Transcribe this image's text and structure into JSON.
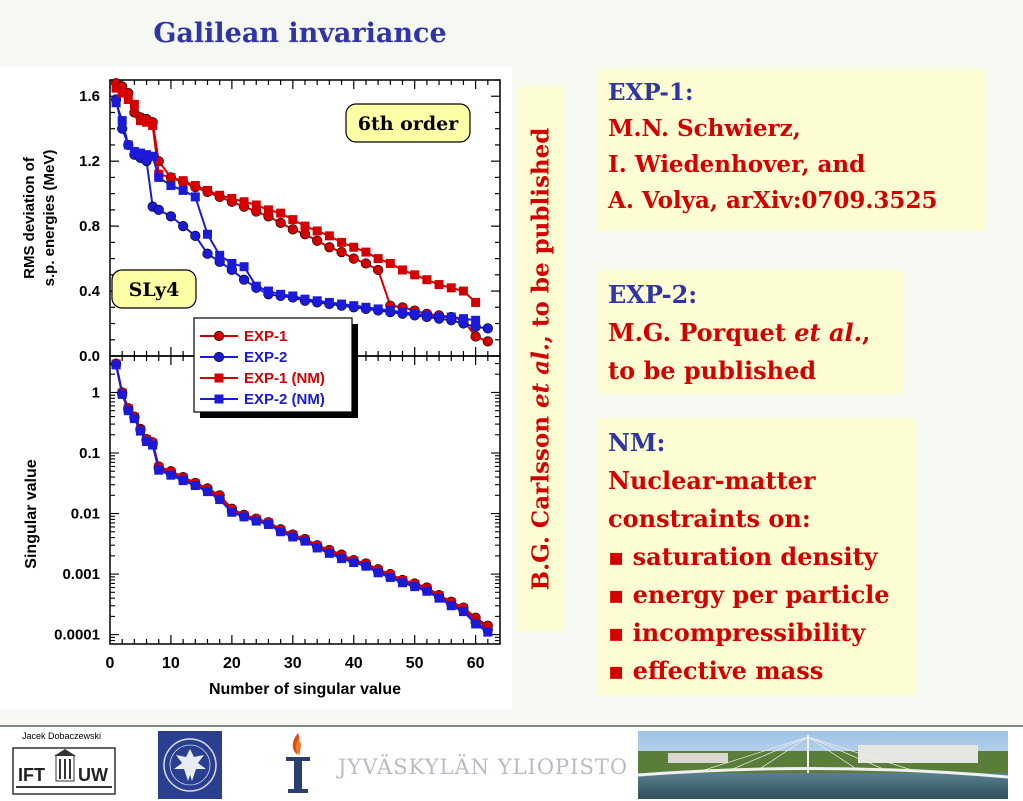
{
  "slide_title": "Galilean invariance",
  "vertical_note": {
    "part1": "B.G. Carlsson ",
    "part2": "et al.",
    "part3": ", to be published"
  },
  "exp1_box": {
    "heading": "EXP-1:",
    "lines": [
      "M.N. Schwierz,",
      "I. Wiedenhover, and",
      "A. Volya, arXiv:0709.3525"
    ]
  },
  "exp2_box": {
    "heading": "EXP-2:",
    "line1_pre": "M.G. Porquet ",
    "line1_em": "et al.",
    "line1_post": ",",
    "line2": "to be published"
  },
  "nm_box": {
    "heading": "NM:",
    "lines": [
      "Nuclear-matter",
      "constraints on:"
    ],
    "bullets": [
      "saturation density",
      "energy per particle",
      "incompressibility",
      "effective mass"
    ]
  },
  "footer": {
    "author": "Jacek Dobaczewski",
    "ift_logo_text": "IFT",
    "uw_logo_text": "UW",
    "university_name": "JYVÄSKYLÄN YLIOPISTO"
  },
  "chart_data": [
    {
      "type": "line",
      "panel": "top",
      "ylabel_lines": [
        "RMS deviation of",
        "s.p. energies (MeV)"
      ],
      "ylim": [
        0,
        1.7
      ],
      "xlim": [
        0,
        64
      ],
      "y_ticks": [
        "0.0",
        "0.4",
        "0.8",
        "1.2",
        "1.6"
      ],
      "y_tick_values": [
        0,
        0.4,
        0.8,
        1.2,
        1.6
      ],
      "annotations": [
        "6th order",
        "SLy4"
      ],
      "series": [
        {
          "name": "EXP-1",
          "color": "#d40000",
          "marker": "circle",
          "x": [
            1,
            2,
            3,
            4,
            5,
            6,
            7,
            8,
            10,
            12,
            14,
            16,
            18,
            20,
            22,
            24,
            26,
            28,
            30,
            32,
            34,
            36,
            38,
            40,
            42,
            44,
            46,
            48,
            50,
            52,
            54,
            56,
            58,
            60,
            62
          ],
          "y": [
            1.68,
            1.66,
            1.62,
            1.5,
            1.47,
            1.46,
            1.44,
            1.2,
            1.1,
            1.07,
            1.04,
            1.01,
            0.98,
            0.95,
            0.92,
            0.89,
            0.86,
            0.82,
            0.78,
            0.75,
            0.71,
            0.67,
            0.64,
            0.6,
            0.57,
            0.53,
            0.31,
            0.3,
            0.28,
            0.26,
            0.25,
            0.24,
            0.22,
            0.12,
            0.09
          ]
        },
        {
          "name": "EXP-2",
          "color": "#1a1ad8",
          "marker": "circle",
          "x": [
            1,
            2,
            3,
            4,
            5,
            6,
            7,
            8,
            10,
            12,
            14,
            16,
            18,
            20,
            22,
            24,
            26,
            28,
            30,
            32,
            34,
            36,
            38,
            40,
            42,
            44,
            46,
            48,
            50,
            52,
            54,
            56,
            58,
            60,
            62
          ],
          "y": [
            1.58,
            1.4,
            1.3,
            1.24,
            1.22,
            1.2,
            0.92,
            0.9,
            0.86,
            0.8,
            0.74,
            0.63,
            0.58,
            0.53,
            0.47,
            0.42,
            0.38,
            0.37,
            0.36,
            0.34,
            0.33,
            0.32,
            0.31,
            0.3,
            0.29,
            0.28,
            0.27,
            0.26,
            0.25,
            0.24,
            0.23,
            0.22,
            0.2,
            0.18,
            0.17
          ]
        },
        {
          "name": "EXP-1 (NM)",
          "color": "#d40000",
          "marker": "square",
          "x": [
            1,
            2,
            3,
            4,
            5,
            6,
            7,
            8,
            10,
            12,
            14,
            16,
            18,
            20,
            22,
            24,
            26,
            28,
            30,
            32,
            34,
            36,
            38,
            40,
            42,
            44,
            46,
            48,
            50,
            52,
            54,
            56,
            58,
            60
          ],
          "y": [
            1.65,
            1.62,
            1.58,
            1.55,
            1.45,
            1.44,
            1.42,
            1.12,
            1.1,
            1.08,
            1.05,
            1.02,
            0.99,
            0.97,
            0.95,
            0.93,
            0.9,
            0.88,
            0.84,
            0.8,
            0.77,
            0.74,
            0.7,
            0.67,
            0.64,
            0.6,
            0.57,
            0.53,
            0.5,
            0.47,
            0.44,
            0.42,
            0.4,
            0.33
          ]
        },
        {
          "name": "EXP-2 (NM)",
          "color": "#1a1ad8",
          "marker": "square",
          "x": [
            1,
            2,
            3,
            4,
            5,
            6,
            7,
            8,
            10,
            12,
            14,
            16,
            18,
            20,
            22,
            24,
            26,
            28,
            30,
            32,
            34,
            36,
            38,
            40,
            42,
            44,
            46,
            48,
            50,
            52,
            54,
            56,
            58,
            60
          ],
          "y": [
            1.56,
            1.45,
            1.3,
            1.26,
            1.25,
            1.24,
            1.23,
            1.1,
            1.05,
            1.02,
            0.98,
            0.75,
            0.62,
            0.57,
            0.55,
            0.43,
            0.4,
            0.38,
            0.37,
            0.35,
            0.34,
            0.33,
            0.32,
            0.31,
            0.3,
            0.29,
            0.28,
            0.27,
            0.26,
            0.25,
            0.24,
            0.24,
            0.23,
            0.22
          ]
        }
      ],
      "legend": [
        "EXP-1",
        "EXP-2",
        "EXP-1 (NM)",
        "EXP-2 (NM)"
      ]
    },
    {
      "type": "line",
      "panel": "bottom",
      "yscale": "log",
      "ylabel": "Singular value",
      "xlabel": "Number of singular value",
      "ylim": [
        7e-05,
        4
      ],
      "xlim": [
        0,
        64
      ],
      "y_ticks": [
        "1",
        "0.1",
        "0.01",
        "0.001",
        "0.0001"
      ],
      "y_tick_values": [
        1,
        0.1,
        0.01,
        0.001,
        0.0001
      ],
      "x_ticks": [
        "0",
        "10",
        "20",
        "30",
        "40",
        "50",
        "60"
      ],
      "x_tick_values": [
        0,
        10,
        20,
        30,
        40,
        50,
        60
      ],
      "series_x": [
        1,
        2,
        3,
        4,
        5,
        6,
        7,
        8,
        10,
        12,
        14,
        16,
        18,
        20,
        22,
        24,
        26,
        28,
        30,
        32,
        34,
        36,
        38,
        40,
        42,
        44,
        46,
        48,
        50,
        52,
        54,
        56,
        58,
        60,
        62
      ],
      "series": [
        {
          "name": "EXP-1",
          "color": "#d40000",
          "marker": "circle",
          "y": [
            3.0,
            1.0,
            0.55,
            0.4,
            0.25,
            0.17,
            0.15,
            0.06,
            0.05,
            0.04,
            0.032,
            0.026,
            0.02,
            0.012,
            0.0095,
            0.0082,
            0.0072,
            0.0055,
            0.0045,
            0.0038,
            0.003,
            0.0025,
            0.0021,
            0.0017,
            0.0015,
            0.0012,
            0.001,
            0.0008,
            0.0007,
            0.0006,
            0.00045,
            0.00035,
            0.00028,
            0.00019,
            0.00014
          ]
        },
        {
          "name": "EXP-2",
          "color": "#1a1ad8",
          "marker": "circle",
          "y": [
            2.9,
            0.95,
            0.52,
            0.38,
            0.24,
            0.16,
            0.14,
            0.055,
            0.045,
            0.037,
            0.03,
            0.024,
            0.018,
            0.011,
            0.009,
            0.0078,
            0.0068,
            0.0052,
            0.0042,
            0.0036,
            0.0028,
            0.0023,
            0.0019,
            0.0016,
            0.0014,
            0.0011,
            0.0009,
            0.00075,
            0.00065,
            0.00055,
            0.00042,
            0.00032,
            0.00025,
            0.00016,
            0.00012
          ]
        },
        {
          "name": "EXP-1 (NM)",
          "color": "#d40000",
          "marker": "square",
          "y": [
            2.95,
            0.98,
            0.54,
            0.39,
            0.24,
            0.165,
            0.145,
            0.058,
            0.048,
            0.039,
            0.031,
            0.025,
            0.019,
            0.0115,
            0.0092,
            0.008,
            0.007,
            0.0053,
            0.0044,
            0.0037,
            0.0029,
            0.0024,
            0.002,
            0.00165,
            0.00145,
            0.00115,
            0.00095,
            0.00078,
            0.00068,
            0.00058,
            0.00044,
            0.00034,
            0.00027,
            0.00018,
            0.00013
          ]
        },
        {
          "name": "EXP-2 (NM)",
          "color": "#1a1ad8",
          "marker": "square",
          "y": [
            2.85,
            0.93,
            0.5,
            0.37,
            0.23,
            0.155,
            0.135,
            0.052,
            0.043,
            0.035,
            0.029,
            0.023,
            0.017,
            0.0105,
            0.0088,
            0.0075,
            0.0066,
            0.005,
            0.0041,
            0.0035,
            0.0027,
            0.0022,
            0.0018,
            0.00155,
            0.00135,
            0.00105,
            0.00088,
            0.00072,
            0.00062,
            0.00052,
            0.0004,
            0.0003,
            0.00024,
            0.00015,
            0.00011
          ]
        }
      ]
    }
  ]
}
